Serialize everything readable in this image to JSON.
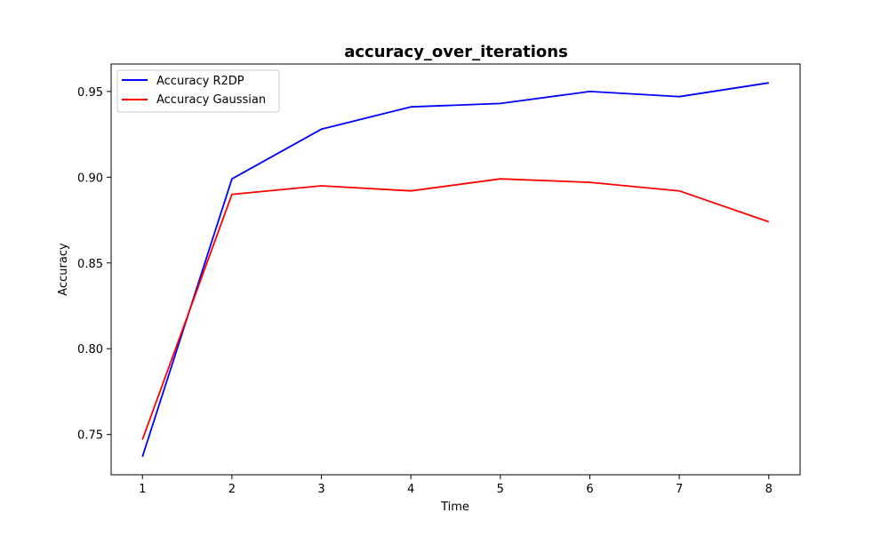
{
  "chart_data": {
    "type": "line",
    "title": "accuracy_over_iterations",
    "title_color": "#0000ff",
    "xlabel": "Time",
    "ylabel": "Accuracy",
    "x": [
      1,
      2,
      3,
      4,
      5,
      6,
      7,
      8
    ],
    "xticks": [
      "1",
      "2",
      "3",
      "4",
      "5",
      "6",
      "7",
      "8"
    ],
    "yticks": [
      "0.75",
      "0.80",
      "0.85",
      "0.90",
      "0.95"
    ],
    "xlim": [
      0.65,
      8.35
    ],
    "ylim": [
      0.7265,
      0.966
    ],
    "grid": false,
    "legend_position": "top-left",
    "series": [
      {
        "name": "Accuracy R2DP",
        "color": "#0000ff",
        "values": [
          0.737,
          0.899,
          0.928,
          0.941,
          0.943,
          0.95,
          0.947,
          0.955
        ]
      },
      {
        "name": "Accuracy Gaussian",
        "color": "#ff0000",
        "values": [
          0.747,
          0.89,
          0.895,
          0.892,
          0.899,
          0.897,
          0.892,
          0.874
        ]
      }
    ]
  }
}
